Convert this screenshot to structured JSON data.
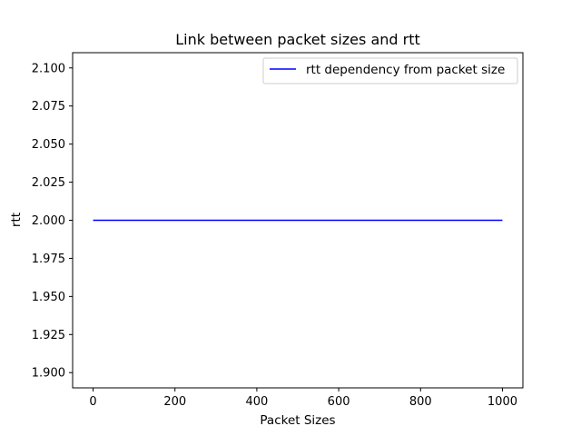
{
  "chart_data": {
    "type": "line",
    "title": "Link between packet sizes and rtt",
    "xlabel": "Packet Sizes",
    "ylabel": "rtt",
    "xlim": [
      -50,
      1050
    ],
    "ylim": [
      1.89,
      2.11
    ],
    "xticks": [
      0,
      200,
      400,
      600,
      800,
      1000
    ],
    "xtick_labels": [
      "0",
      "200",
      "400",
      "600",
      "800",
      "1000"
    ],
    "yticks": [
      1.9,
      1.925,
      1.95,
      1.975,
      2.0,
      2.025,
      2.05,
      2.075,
      2.1
    ],
    "ytick_labels": [
      "1.900",
      "1.925",
      "1.950",
      "1.975",
      "2.000",
      "2.025",
      "2.050",
      "2.075",
      "2.100"
    ],
    "grid": false,
    "legend_position": "top-right",
    "series": [
      {
        "name": "rtt dependency from packet size",
        "color": "#0000ff",
        "x": [
          0,
          1000
        ],
        "y": [
          2.0,
          2.0
        ]
      }
    ]
  }
}
